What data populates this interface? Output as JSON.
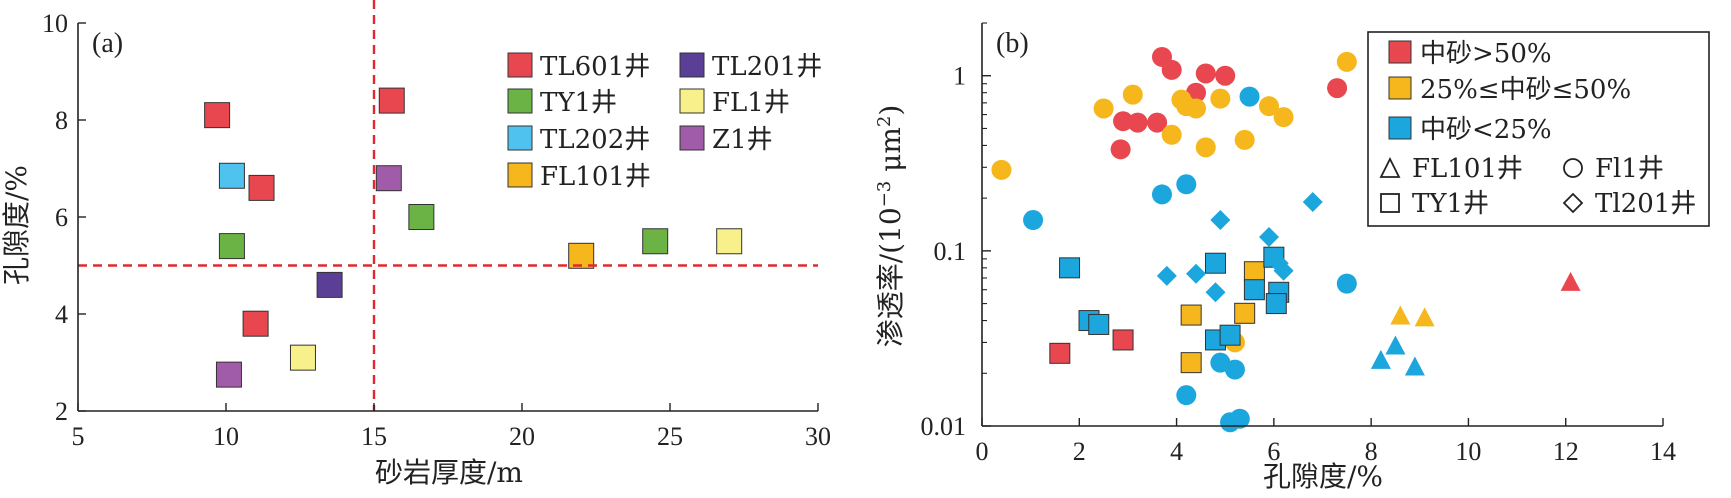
{
  "chart_data": [
    {
      "panel": "(a)",
      "type": "scatter",
      "xlabel": "砂岩厚度/m",
      "ylabel": "孔隙度/%",
      "xlim": [
        5,
        30
      ],
      "ylim": [
        2,
        10
      ],
      "xticks": [
        "5",
        "10",
        "15",
        "20",
        "25",
        "30"
      ],
      "yticks": [
        "2",
        "4",
        "6",
        "8",
        "10"
      ],
      "thresholds": {
        "x": 15,
        "y": 5
      },
      "legend_position": "top-right",
      "series": [
        {
          "name": "TL601井",
          "color": "#e8474f",
          "marker": "square",
          "points": [
            [
              9.7,
              8.1
            ],
            [
              11.2,
              6.6
            ],
            [
              15.6,
              8.4
            ],
            [
              11.0,
              3.8
            ]
          ]
        },
        {
          "name": "TL201井",
          "color": "#5b3f97",
          "marker": "square",
          "points": [
            [
              13.5,
              4.6
            ]
          ]
        },
        {
          "name": "TY1井",
          "color": "#6ab344",
          "marker": "square",
          "points": [
            [
              10.2,
              5.4
            ],
            [
              16.6,
              6.0
            ],
            [
              24.5,
              5.5
            ]
          ]
        },
        {
          "name": "FL1井",
          "color": "#f7f08b",
          "marker": "square",
          "points": [
            [
              12.6,
              3.1
            ],
            [
              27.0,
              5.5
            ]
          ]
        },
        {
          "name": "TL202井",
          "color": "#4fc2ef",
          "marker": "square",
          "points": [
            [
              10.2,
              6.85
            ]
          ]
        },
        {
          "name": "Z1井",
          "color": "#a05ca8",
          "marker": "square",
          "points": [
            [
              15.5,
              6.8
            ],
            [
              10.1,
              2.75
            ]
          ]
        },
        {
          "name": "FL101井",
          "color": "#f6b71c",
          "marker": "square",
          "points": [
            [
              22.0,
              5.2
            ]
          ]
        }
      ]
    },
    {
      "panel": "(b)",
      "type": "scatter",
      "xlabel": "孔隙度/%",
      "ylabel": "渗透率/(10",
      "ylabel_exp": "−3",
      "ylabel_unit": " μm",
      "ylabel_unit_exp": "2",
      "ylabel_close": ")",
      "xlim": [
        0,
        14
      ],
      "ylim": [
        0.01,
        2
      ],
      "yscale": "log",
      "xticks": [
        "0",
        "2",
        "4",
        "6",
        "8",
        "10",
        "12",
        "14"
      ],
      "yticks": [
        "0.01",
        "0.1",
        "1"
      ],
      "legend_position": "top-right",
      "color_legend": [
        {
          "label": "中砂>50%",
          "color": "#e8474f"
        },
        {
          "label": "25%≤中砂≤50%",
          "color": "#f6b71c"
        },
        {
          "label": "中砂<25%",
          "color": "#1ba6de"
        }
      ],
      "shape_legend": [
        {
          "label": "FL101井",
          "marker": "triangle"
        },
        {
          "label": "Fl1井",
          "marker": "circle"
        },
        {
          "label": "TY1井",
          "marker": "square"
        },
        {
          "label": "Tl201井",
          "marker": "diamond"
        }
      ],
      "series": [
        {
          "group": "中砂>50%",
          "color": "#e8474f",
          "marker": "circle",
          "points": [
            [
              3.7,
              1.28
            ],
            [
              3.9,
              1.08
            ],
            [
              4.4,
              0.8
            ],
            [
              4.6,
              1.03
            ],
            [
              5.0,
              1.0
            ],
            [
              2.9,
              0.55
            ],
            [
              3.2,
              0.54
            ],
            [
              3.6,
              0.54
            ],
            [
              2.85,
              0.38
            ],
            [
              7.3,
              0.85
            ]
          ]
        },
        {
          "group": "中砂>50%",
          "color": "#e8474f",
          "marker": "square",
          "points": [
            [
              1.6,
              0.026
            ],
            [
              2.9,
              0.031
            ]
          ]
        },
        {
          "group": "中砂>50%",
          "color": "#e8474f",
          "marker": "triangle",
          "points": [
            [
              12.1,
              0.067
            ]
          ]
        },
        {
          "group": "25%≤中砂≤50%",
          "color": "#f6b71c",
          "marker": "circle",
          "points": [
            [
              0.4,
              0.29
            ],
            [
              2.5,
              0.65
            ],
            [
              3.1,
              0.78
            ],
            [
              4.1,
              0.73
            ],
            [
              4.2,
              0.67
            ],
            [
              4.4,
              0.65
            ],
            [
              4.9,
              0.74
            ],
            [
              5.9,
              0.67
            ],
            [
              6.2,
              0.58
            ],
            [
              7.5,
              1.2
            ],
            [
              3.9,
              0.46
            ],
            [
              4.6,
              0.39
            ],
            [
              5.4,
              0.43
            ],
            [
              5.2,
              0.03
            ]
          ]
        },
        {
          "group": "25%≤中砂≤50%",
          "color": "#f6b71c",
          "marker": "square",
          "points": [
            [
              4.3,
              0.043
            ],
            [
              4.3,
              0.023
            ],
            [
              5.4,
              0.044
            ],
            [
              5.6,
              0.076
            ]
          ]
        },
        {
          "group": "25%≤中砂≤50%",
          "color": "#f6b71c",
          "marker": "triangle",
          "points": [
            [
              8.6,
              0.043
            ],
            [
              9.1,
              0.042
            ]
          ]
        },
        {
          "group": "中砂<25%",
          "color": "#1ba6de",
          "marker": "circle",
          "points": [
            [
              1.05,
              0.15
            ],
            [
              3.7,
              0.21
            ],
            [
              4.2,
              0.24
            ],
            [
              5.5,
              0.76
            ],
            [
              7.5,
              0.065
            ],
            [
              4.2,
              0.015
            ],
            [
              4.9,
              0.023
            ],
            [
              5.2,
              0.021
            ],
            [
              5.3,
              0.011
            ],
            [
              5.1,
              0.0105
            ]
          ]
        },
        {
          "group": "中砂<25%",
          "color": "#1ba6de",
          "marker": "square",
          "points": [
            [
              1.8,
              0.08
            ],
            [
              2.2,
              0.04
            ],
            [
              2.4,
              0.038
            ],
            [
              4.8,
              0.085
            ],
            [
              4.8,
              0.031
            ],
            [
              5.1,
              0.033
            ],
            [
              5.6,
              0.06
            ],
            [
              6.0,
              0.092
            ],
            [
              6.1,
              0.058
            ],
            [
              6.05,
              0.05
            ]
          ]
        },
        {
          "group": "中砂<25%",
          "color": "#1ba6de",
          "marker": "diamond",
          "points": [
            [
              3.8,
              0.072
            ],
            [
              4.4,
              0.074
            ],
            [
              4.9,
              0.15
            ],
            [
              4.8,
              0.058
            ],
            [
              5.9,
              0.12
            ],
            [
              6.1,
              0.085
            ],
            [
              6.2,
              0.077
            ],
            [
              6.8,
              0.19
            ]
          ]
        },
        {
          "group": "中砂<25%",
          "color": "#1ba6de",
          "marker": "triangle",
          "points": [
            [
              8.2,
              0.024
            ],
            [
              8.5,
              0.029
            ],
            [
              8.9,
              0.022
            ]
          ]
        }
      ]
    }
  ]
}
